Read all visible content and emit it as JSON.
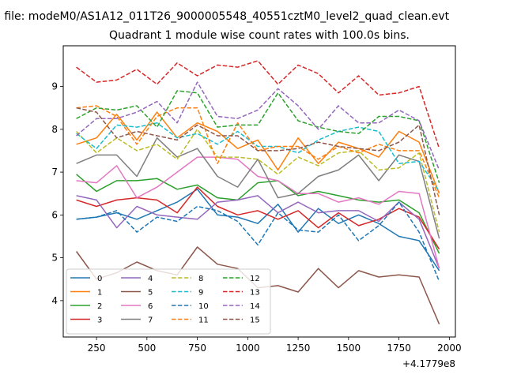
{
  "figure": {
    "suptitle": "n file: modeM0/AS1A12_011T26_9000005548_40551cztM0_level2_quad_clean.evt"
  },
  "chart_data": {
    "type": "line",
    "title": "Quadrant 1 module wise count rates with 100.0s bins.",
    "xlabel": "",
    "ylabel": "",
    "x_offset_label": "+4.1779e8",
    "xlim": [
      85,
      2030
    ],
    "ylim": [
      3.15,
      9.95
    ],
    "xticks": [
      250,
      500,
      750,
      1000,
      1250,
      1500,
      1750,
      2000
    ],
    "yticks": [
      4,
      5,
      6,
      7,
      8,
      9
    ],
    "grid": false,
    "legend": {
      "placement": "lower-left",
      "columns": 4
    },
    "x": [
      150,
      250,
      350,
      450,
      550,
      650,
      750,
      850,
      950,
      1050,
      1150,
      1250,
      1350,
      1450,
      1550,
      1650,
      1750,
      1850,
      1950
    ],
    "series": [
      {
        "name": "0",
        "color": "#1f77b4",
        "dash": "solid",
        "values": [
          5.9,
          5.95,
          6.05,
          5.9,
          6.1,
          6.3,
          6.6,
          6.0,
          5.95,
          5.8,
          6.25,
          5.6,
          6.15,
          5.8,
          6.0,
          5.8,
          5.5,
          5.4,
          4.7
        ]
      },
      {
        "name": "1",
        "color": "#ff7f0e",
        "dash": "solid",
        "values": [
          7.65,
          7.8,
          8.35,
          7.75,
          8.4,
          7.8,
          8.15,
          7.95,
          7.55,
          7.75,
          7.05,
          7.8,
          7.2,
          7.7,
          7.55,
          7.35,
          7.95,
          7.7,
          6.5
        ]
      },
      {
        "name": "2",
        "color": "#2ca02c",
        "dash": "solid",
        "values": [
          6.95,
          6.55,
          6.8,
          6.8,
          6.85,
          6.6,
          6.7,
          6.4,
          6.35,
          6.75,
          6.8,
          6.45,
          6.55,
          6.45,
          6.35,
          6.3,
          6.35,
          6.05,
          5.1
        ]
      },
      {
        "name": "3",
        "color": "#d62728",
        "dash": "solid",
        "values": [
          6.35,
          6.2,
          6.35,
          6.4,
          6.35,
          6.05,
          6.65,
          6.2,
          6.0,
          6.1,
          5.9,
          6.1,
          5.7,
          6.05,
          5.75,
          5.9,
          6.15,
          5.95,
          5.2
        ]
      },
      {
        "name": "4",
        "color": "#9467bd",
        "dash": "solid",
        "values": [
          6.45,
          6.35,
          5.7,
          6.2,
          6.0,
          5.95,
          5.9,
          6.3,
          6.35,
          6.45,
          6.05,
          6.3,
          6.05,
          6.1,
          6.1,
          5.85,
          6.3,
          5.9,
          4.75
        ]
      },
      {
        "name": "5",
        "color": "#8c564b",
        "dash": "solid",
        "values": [
          5.15,
          4.5,
          4.65,
          4.9,
          4.7,
          4.6,
          5.25,
          4.85,
          4.75,
          4.3,
          4.35,
          4.2,
          4.75,
          4.3,
          4.7,
          4.55,
          4.6,
          4.55,
          3.45
        ]
      },
      {
        "name": "6",
        "color": "#e377c2",
        "dash": "solid",
        "values": [
          6.8,
          6.75,
          7.15,
          6.4,
          6.65,
          7.0,
          7.35,
          7.35,
          7.3,
          6.9,
          6.8,
          6.5,
          6.5,
          6.3,
          6.4,
          6.25,
          6.55,
          6.5,
          4.75
        ]
      },
      {
        "name": "7",
        "color": "#7f7f7f",
        "dash": "solid",
        "values": [
          7.2,
          7.4,
          7.4,
          6.9,
          7.8,
          7.35,
          7.55,
          6.9,
          6.65,
          7.3,
          6.4,
          6.5,
          6.9,
          7.05,
          7.4,
          6.8,
          7.4,
          7.25,
          5.45
        ]
      },
      {
        "name": "8",
        "color": "#bcbd22",
        "dash": "dashed",
        "values": [
          7.95,
          7.45,
          7.8,
          7.5,
          7.65,
          7.3,
          8.0,
          7.35,
          7.35,
          7.3,
          6.95,
          7.35,
          7.15,
          7.45,
          7.5,
          7.05,
          7.1,
          7.45,
          5.6
        ]
      },
      {
        "name": "9",
        "color": "#17becf",
        "dash": "dashed",
        "values": [
          7.9,
          7.55,
          8.1,
          8.05,
          8.15,
          7.8,
          7.9,
          7.65,
          7.95,
          7.6,
          7.6,
          7.45,
          7.75,
          7.95,
          8.05,
          7.95,
          7.2,
          7.25,
          6.55
        ]
      },
      {
        "name": "10",
        "color": "#1f77b4",
        "dash": "dashed",
        "values": [
          5.9,
          5.95,
          6.1,
          5.6,
          5.95,
          5.85,
          6.2,
          6.1,
          5.85,
          5.3,
          6.05,
          5.65,
          5.6,
          6.0,
          5.4,
          5.75,
          6.3,
          5.6,
          4.45
        ]
      },
      {
        "name": "11",
        "color": "#ff7f0e",
        "dash": "dashed",
        "values": [
          8.5,
          8.55,
          8.3,
          7.65,
          8.3,
          8.5,
          8.5,
          7.2,
          8.15,
          7.5,
          7.6,
          7.6,
          7.3,
          7.6,
          7.45,
          7.65,
          7.5,
          7.5,
          6.4
        ]
      },
      {
        "name": "12",
        "color": "#2ca02c",
        "dash": "dashed",
        "values": [
          8.25,
          8.5,
          8.45,
          8.55,
          8.05,
          8.9,
          8.85,
          8.05,
          8.1,
          8.1,
          8.85,
          8.2,
          8.05,
          7.95,
          7.9,
          8.3,
          8.3,
          8.2,
          6.75
        ]
      },
      {
        "name": "13",
        "color": "#d62728",
        "dash": "dashed",
        "values": [
          9.45,
          9.1,
          9.15,
          9.4,
          9.05,
          9.55,
          9.25,
          9.5,
          9.45,
          9.6,
          9.05,
          9.5,
          9.3,
          8.85,
          9.25,
          8.8,
          8.85,
          9.0,
          7.55
        ]
      },
      {
        "name": "14",
        "color": "#9467bd",
        "dash": "dashed",
        "values": [
          7.85,
          8.25,
          8.25,
          8.4,
          8.65,
          8.15,
          9.1,
          8.3,
          8.25,
          8.45,
          8.95,
          8.55,
          8.0,
          8.55,
          8.15,
          8.15,
          8.45,
          8.2,
          7.05
        ]
      },
      {
        "name": "15",
        "color": "#8c564b",
        "dash": "dashed",
        "values": [
          8.5,
          8.4,
          7.8,
          7.95,
          7.85,
          7.75,
          8.1,
          7.85,
          7.85,
          7.5,
          7.5,
          7.55,
          7.7,
          7.6,
          7.55,
          7.5,
          7.7,
          8.1,
          6.0
        ]
      }
    ]
  }
}
